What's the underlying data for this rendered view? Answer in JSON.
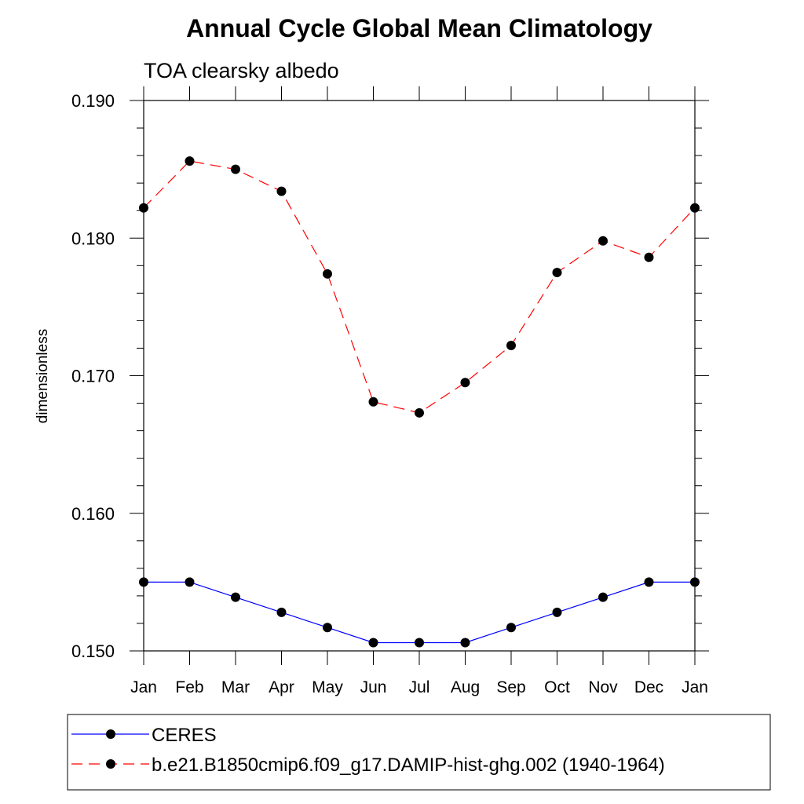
{
  "chart_data": {
    "type": "line",
    "title": "Annual Cycle Global Mean Climatology",
    "subtitle": "TOA clearsky albedo",
    "ylabel": "dimensionless",
    "xlabel": "",
    "categories": [
      "Jan",
      "Feb",
      "Mar",
      "Apr",
      "May",
      "Jun",
      "Jul",
      "Aug",
      "Sep",
      "Oct",
      "Nov",
      "Dec",
      "Jan"
    ],
    "ylim": [
      0.15,
      0.19
    ],
    "yticks": [
      "0.150",
      "0.160",
      "0.170",
      "0.180",
      "0.190"
    ],
    "grid": false,
    "legend_position": "bottom",
    "series": [
      {
        "name": "CERES",
        "color": "#0000ff",
        "line_style": "solid",
        "marker": "filled-circle",
        "values": [
          0.155,
          0.155,
          0.1539,
          0.1528,
          0.1517,
          0.1506,
          0.1506,
          0.1506,
          0.1517,
          0.1528,
          0.1539,
          0.155,
          0.155
        ]
      },
      {
        "name": "b.e21.B1850cmip6.f09_g17.DAMIP-hist-ghg.002 (1940-1964)",
        "color": "#ff0000",
        "line_style": "dashed",
        "marker": "filled-circle",
        "values": [
          0.1822,
          0.1856,
          0.185,
          0.1834,
          0.1774,
          0.1681,
          0.1673,
          0.1695,
          0.1722,
          0.1775,
          0.1798,
          0.1786,
          0.1822
        ]
      }
    ]
  }
}
